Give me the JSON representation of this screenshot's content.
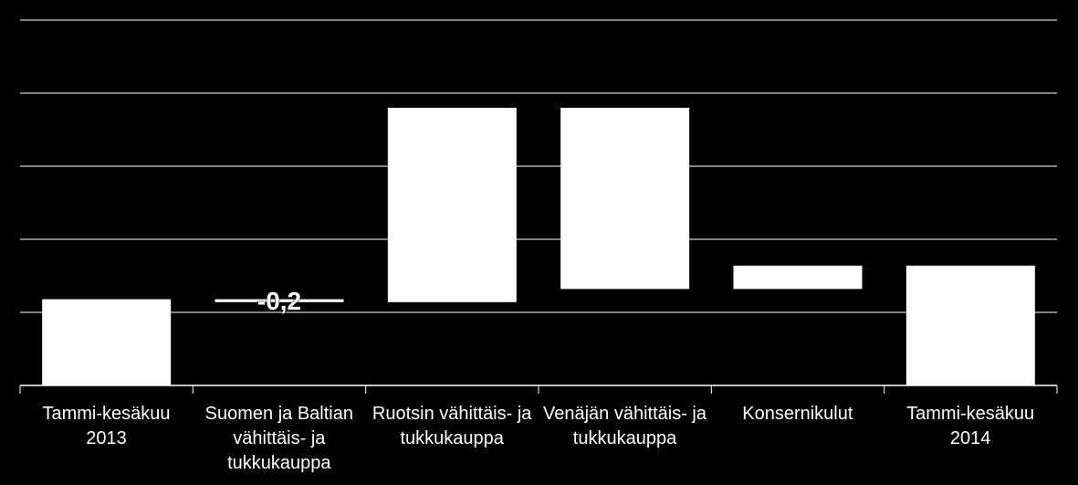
{
  "chart_data": {
    "type": "waterfall",
    "categories": [
      "Tammi-kesäkuu 2013",
      "Suomen ja Baltian vähittäis- ja tukkukauppa",
      "Ruotsin vähittäis- ja tukkukauppa",
      "Venäjän vähittäis- ja tukkukauppa",
      "Konsernikulut",
      "Tammi-kesäkuu 2014"
    ],
    "values": [
      5.9,
      -0.2,
      13.3,
      -12.4,
      1.6,
      8.2
    ],
    "value_labels": [
      null,
      "-0,2",
      null,
      null,
      null,
      null
    ],
    "totals": [
      true,
      false,
      false,
      false,
      false,
      true
    ],
    "color": "#ffffff",
    "ylim": [
      0,
      25
    ],
    "yticks": [
      0,
      5,
      10,
      15,
      20,
      25
    ],
    "grid": true
  }
}
